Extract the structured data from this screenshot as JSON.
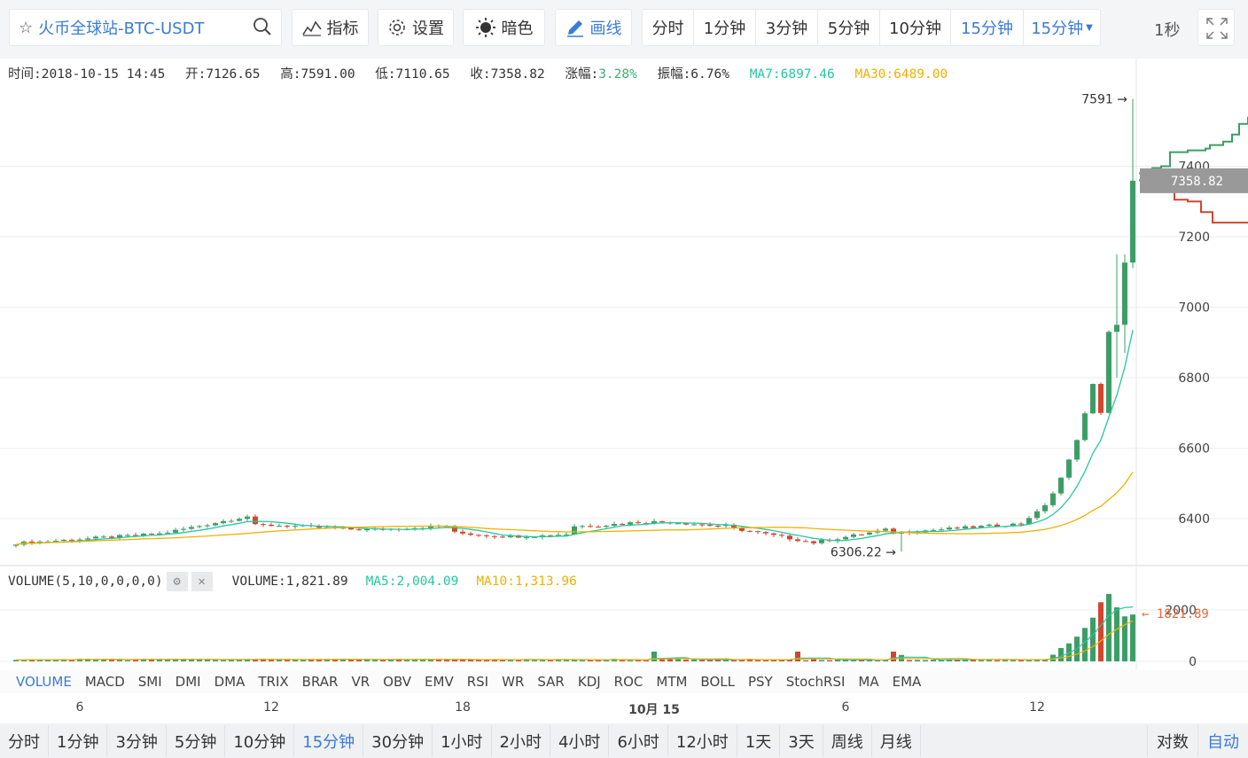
{
  "toolbar": {
    "symbol": "火币全球站-BTC-USDT",
    "indicator_label": "指标",
    "settings_label": "设置",
    "theme_label": "暗色",
    "draw_label": "画线",
    "periods": [
      "分时",
      "1分钟",
      "3分钟",
      "5分钟",
      "10分钟",
      "15分钟",
      "15分钟"
    ],
    "active_period_index": 5,
    "refresh": "1秒"
  },
  "info": {
    "time": "时间:2018-10-15 14:45",
    "open": "开:7126.65",
    "high": "高:7591.00",
    "low": "低:7110.65",
    "close": "收:7358.82",
    "change_label": "涨幅:",
    "change_value": "3.28%",
    "amplitude": "振幅:6.76%",
    "ma7": "MA7:6897.46",
    "ma30": "MA30:6489.00"
  },
  "price_axis": {
    "ticks": [
      "7400",
      "7200",
      "7000",
      "6800",
      "6600",
      "6400"
    ],
    "current_price": "7358.82",
    "high_marker": "7591",
    "low_marker": "6306.22"
  },
  "volume": {
    "title": "VOLUME(5,10,0,0,0,0)",
    "value": "VOLUME:1,821.89",
    "ma5": "MA5:2,004.09",
    "ma10": "MA10:1,313.96",
    "ticks": [
      "2000",
      "0"
    ],
    "current": "1821.89"
  },
  "indicator_tabs": [
    "VOLUME",
    "MACD",
    "SMI",
    "DMI",
    "DMA",
    "TRIX",
    "BRAR",
    "VR",
    "OBV",
    "EMV",
    "RSI",
    "WR",
    "SAR",
    "KDJ",
    "ROC",
    "MTM",
    "BOLL",
    "PSY",
    "StochRSI",
    "MA",
    "EMA"
  ],
  "x_labels": [
    "6",
    "12",
    "18",
    "10月 15",
    "6",
    "12"
  ],
  "bottom_periods": [
    "分时",
    "1分钟",
    "3分钟",
    "5分钟",
    "10分钟",
    "15分钟",
    "30分钟",
    "1小时",
    "2小时",
    "4小时",
    "6小时",
    "12小时",
    "1天",
    "3天",
    "周线",
    "月线"
  ],
  "bottom_active_index": 5,
  "bottom_right": [
    "对数",
    "自动"
  ],
  "colors": {
    "up": "#3d9d66",
    "down": "#d2452f",
    "ma7": "#25c7a0",
    "ma30": "#f0b000",
    "accent": "#3a7bd5"
  },
  "chart_data": {
    "type": "candlestick",
    "title": "火币全球站-BTC-USDT",
    "interval": "15分钟",
    "y_range": [
      6300,
      7620
    ],
    "x_labels": [
      "6",
      "12",
      "18",
      "10月 15",
      "6",
      "12"
    ],
    "last_candles": [
      {
        "time": "2018-10-15 14:45",
        "open": 7126.65,
        "high": 7591.0,
        "low": 7110.65,
        "close": 7358.82
      }
    ],
    "ma7_last": 6897.46,
    "ma30_last": 6489.0,
    "volume_last": 1821.89,
    "volume_ma5_last": 2004.09,
    "volume_ma10_last": 1313.96
  }
}
